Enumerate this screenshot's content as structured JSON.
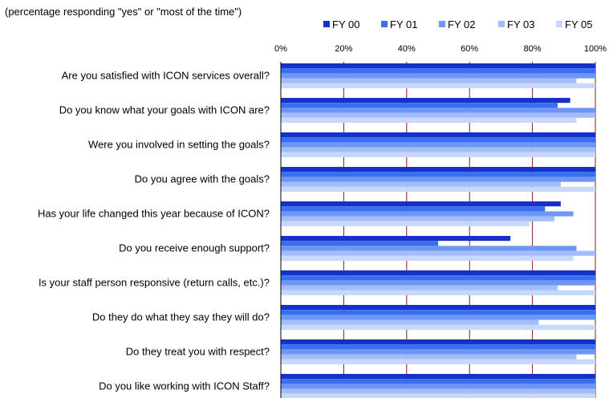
{
  "chart_data": {
    "type": "bar",
    "orientation": "horizontal",
    "subtitle": "(percentage responding \"yes\" or \"most of the time\")",
    "categories": [
      "Are you satisfied with ICON services overall?",
      "Do you know what your goals with ICON are?",
      "Were you involved in setting the goals?",
      "Do you agree with the goals?",
      "Has your life changed this year because of ICON?",
      "Do you receive enough support?",
      "Is your staff person responsive (return calls, etc.)?",
      "Do they do what they say they will do?",
      "Do they treat you with respect?",
      "Do you like working with ICON Staff?"
    ],
    "series": [
      {
        "name": "FY 00",
        "color": "#1432c8",
        "values": [
          100,
          92,
          100,
          100,
          89,
          73,
          100,
          100,
          100,
          100
        ]
      },
      {
        "name": "FY 01",
        "color": "#3a6ef0",
        "values": [
          100,
          88,
          100,
          100,
          84,
          50,
          100,
          100,
          100,
          100
        ]
      },
      {
        "name": "FY 02",
        "color": "#6e96f5",
        "values": [
          100,
          100,
          100,
          100,
          93,
          94,
          100,
          100,
          100,
          100
        ]
      },
      {
        "name": "FY 03",
        "color": "#a3bdf8",
        "values": [
          94,
          100,
          100,
          89,
          87,
          100,
          88,
          82,
          94,
          100
        ]
      },
      {
        "name": "FY 05",
        "color": "#c8d8fb",
        "values": [
          100,
          94,
          100,
          100,
          79,
          93,
          100,
          100,
          100,
          100
        ]
      }
    ],
    "xaxis": {
      "ticks": [
        0,
        20,
        40,
        60,
        80,
        100
      ],
      "tick_labels": [
        "0%",
        "20%",
        "40%",
        "60%",
        "80%",
        "100%"
      ],
      "range": [
        0,
        100
      ],
      "position": "top"
    },
    "grid": true,
    "grid_color": "#8b1a1a",
    "legend_position": "top-right"
  }
}
